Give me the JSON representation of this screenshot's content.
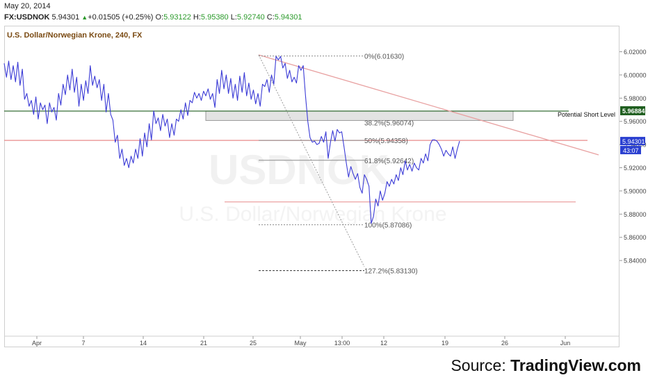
{
  "header": {
    "date": "May 20, 2014",
    "symbol": "FX:USDNOK",
    "last": "5.94301",
    "arrow": "▲",
    "change": "+0.01505 (+0.25%)",
    "open_label": "O:",
    "open": "5.93122",
    "high_label": "H:",
    "high": "5.95380",
    "low_label": "L:",
    "low": "5.92740",
    "close_label": "C:",
    "close": "5.94301"
  },
  "source": {
    "prefix": "Source: ",
    "brand": "TradingView.com"
  },
  "colors": {
    "price_line": "#3b3bd6",
    "trendline": "#e8a0a0",
    "hline_red": "#e88a8a",
    "short_level": "#1f5e1f",
    "fib_zone": "#e3e3e3",
    "axis_text": "#444444"
  },
  "chart_data": {
    "type": "line",
    "title": "U.S. Dollar/Norwegian Krone, 240, FX",
    "xlabel": "",
    "ylabel": "",
    "ylim": [
      5.825,
      6.035
    ],
    "y_ticks": [
      "5.84000",
      "5.86000",
      "5.88000",
      "5.90000",
      "5.92000",
      "5.94000",
      "5.96000",
      "5.98000",
      "6.00000",
      "6.02000"
    ],
    "x_ticks": [
      "Apr",
      "7",
      "14",
      "21",
      "25",
      "May",
      "13:00",
      "12",
      "19",
      "26",
      "Jun"
    ],
    "series": [
      {
        "values": [
          6.01,
          5.998,
          6.012,
          5.996,
          6.008,
          5.994,
          6.011,
          5.991,
          6.005,
          5.979,
          5.984,
          5.973,
          5.978,
          5.966,
          5.981,
          5.962,
          5.976,
          5.97,
          5.974,
          5.958,
          5.976,
          5.968,
          5.972,
          5.961,
          5.984,
          5.974,
          5.992,
          5.983,
          6.0,
          5.987,
          6.005,
          5.985,
          5.998,
          5.973,
          5.992,
          5.978,
          5.995,
          5.984,
          6.008,
          5.991,
          5.999,
          5.989,
          5.996,
          5.978,
          5.992,
          5.968,
          5.984,
          5.966,
          5.961,
          5.942,
          5.948,
          5.928,
          5.936,
          5.922,
          5.928,
          5.92,
          5.93,
          5.924,
          5.936,
          5.928,
          5.945,
          5.93,
          5.95,
          5.938,
          5.958,
          5.944,
          5.969,
          5.958,
          5.963,
          5.952,
          5.966,
          5.956,
          5.962,
          5.946,
          5.958,
          5.948,
          5.962,
          5.96,
          5.97,
          5.962,
          5.976,
          5.965,
          5.978,
          5.976,
          5.985,
          5.98,
          5.984,
          5.978,
          5.986,
          5.982,
          5.988,
          5.979,
          5.984,
          5.972,
          5.996,
          5.984,
          6.004,
          5.988,
          6.0,
          5.984,
          5.997,
          5.98,
          5.992,
          5.978,
          5.999,
          5.985,
          6.002,
          5.982,
          5.993,
          5.979,
          5.987,
          5.975,
          5.984,
          5.973,
          5.992,
          5.99,
          5.996,
          5.985,
          6.0,
          5.992,
          6.016,
          6.013,
          6.016,
          6.006,
          6.01,
          5.997,
          6.004,
          5.994,
          5.998,
          5.993,
          6.008,
          6.004,
          6.008,
          5.982,
          5.96,
          5.946,
          5.942,
          5.943,
          5.94,
          5.941,
          5.947,
          5.942,
          5.951,
          5.928,
          5.942,
          5.952,
          5.943,
          5.953,
          5.95,
          5.951,
          5.938,
          5.924,
          5.912,
          5.921,
          5.915,
          5.91,
          5.915,
          5.903,
          5.898,
          5.914,
          5.91,
          5.904,
          5.872,
          5.878,
          5.893,
          5.887,
          5.9,
          5.892,
          5.898,
          5.908,
          5.904,
          5.91,
          5.906,
          5.914,
          5.909,
          5.92,
          5.914,
          5.926,
          5.918,
          5.923,
          5.917,
          5.924,
          5.92,
          5.918,
          5.928,
          5.924,
          5.932,
          5.926,
          5.94,
          5.944,
          5.944,
          5.943,
          5.94,
          5.936,
          5.93,
          5.935,
          5.932,
          5.93,
          5.938,
          5.928,
          5.936,
          5.943
        ]
      }
    ],
    "current_price_label": "5.94301",
    "countdown_label": "43:07",
    "short_level_label": "Potential Short Level",
    "short_level_value": "5.96884",
    "short_level_price": 5.96884,
    "red_level_price": 5.94358,
    "lower_red_level_price": 5.8905,
    "fib_levels": [
      {
        "label": "0%(6.01630)",
        "price": 6.0163
      },
      {
        "label": "38.2%(5.96074)",
        "price": 5.96074
      },
      {
        "label": "50%(5.94358)",
        "price": 5.94358
      },
      {
        "label": "61.8%(5.92642)",
        "price": 5.92642
      },
      {
        "label": "100%(5.87086)",
        "price": 5.87086
      },
      {
        "label": "127.2%(5.83130)",
        "price": 5.8313
      }
    ],
    "fib_zone": {
      "from": 5.96074,
      "to": 5.96884
    },
    "watermark": [
      "USDNOK",
      "U.S. Dollar/Norwegian Krone"
    ]
  }
}
